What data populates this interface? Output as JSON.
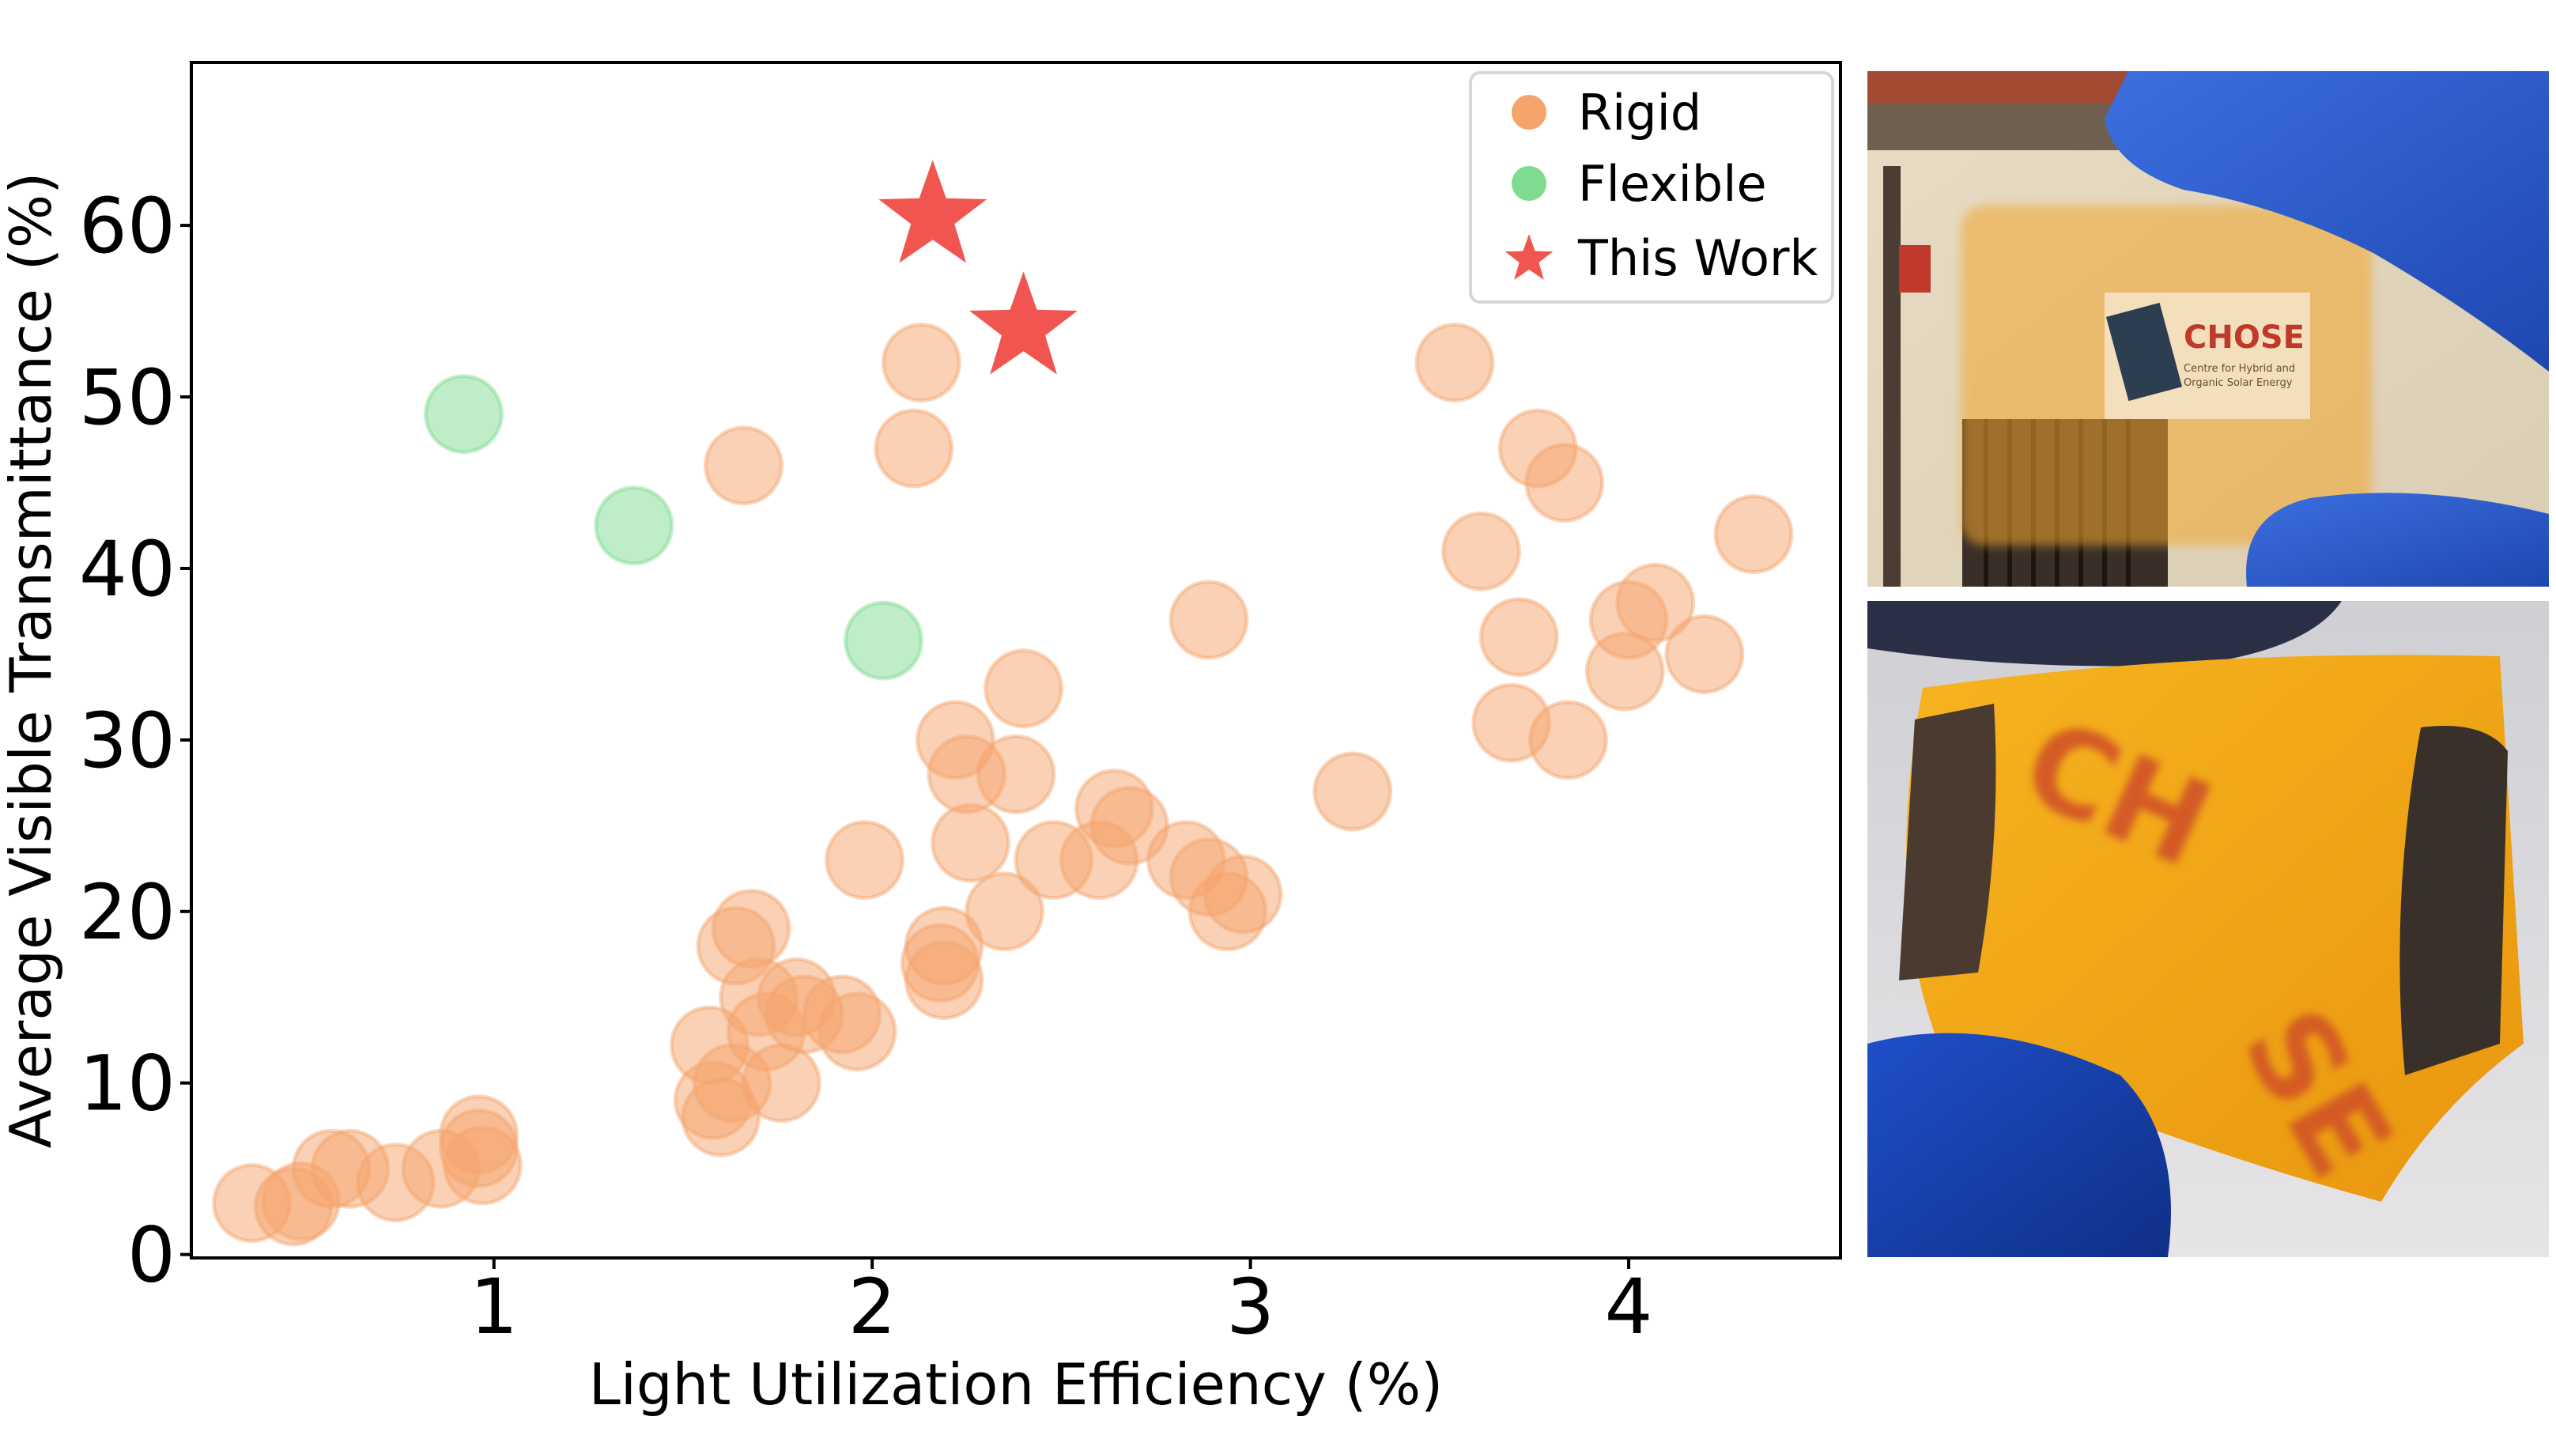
{
  "chart_data": {
    "type": "scatter",
    "xlabel": "Light Utilization Efficiency (%)",
    "ylabel": "Average Visible Transmittance (%)",
    "xlim": [
      0.2,
      4.56
    ],
    "ylim": [
      -0.2,
      69.5
    ],
    "x_ticks": [
      "1",
      "2",
      "3",
      "4"
    ],
    "y_ticks": [
      "0",
      "10",
      "20",
      "30",
      "40",
      "50",
      "60"
    ],
    "grid": false,
    "legend_position": "top-right",
    "series": [
      {
        "name": "Rigid",
        "color": "#f5a46c",
        "marker": "circle",
        "points": [
          [
            0.36,
            3.0
          ],
          [
            0.47,
            2.8
          ],
          [
            0.49,
            3.1
          ],
          [
            0.57,
            5.0
          ],
          [
            0.62,
            5.0
          ],
          [
            0.74,
            4.2
          ],
          [
            0.86,
            5.0
          ],
          [
            0.96,
            7.0
          ],
          [
            0.97,
            5.2
          ],
          [
            0.96,
            6.2
          ],
          [
            1.57,
            12.2
          ],
          [
            1.58,
            9.0
          ],
          [
            1.6,
            8.0
          ],
          [
            1.63,
            10.0
          ],
          [
            1.64,
            18.0
          ],
          [
            1.68,
            19.0
          ],
          [
            1.7,
            15.0
          ],
          [
            1.72,
            13.0
          ],
          [
            1.76,
            10.0
          ],
          [
            1.8,
            15.0
          ],
          [
            1.82,
            14.0
          ],
          [
            1.92,
            14.0
          ],
          [
            1.96,
            13.0
          ],
          [
            1.66,
            46.0
          ],
          [
            1.98,
            23.0
          ],
          [
            2.11,
            47.0
          ],
          [
            2.13,
            52.0
          ],
          [
            2.18,
            17.0
          ],
          [
            2.19,
            18.0
          ],
          [
            2.19,
            16.0
          ],
          [
            2.22,
            30.0
          ],
          [
            2.25,
            28.0
          ],
          [
            2.26,
            24.0
          ],
          [
            2.35,
            20.0
          ],
          [
            2.38,
            28.0
          ],
          [
            2.4,
            33.0
          ],
          [
            2.48,
            23.0
          ],
          [
            2.6,
            23.0
          ],
          [
            2.64,
            26.0
          ],
          [
            2.68,
            25.0
          ],
          [
            2.83,
            23.0
          ],
          [
            2.89,
            22.0
          ],
          [
            2.89,
            37.0
          ],
          [
            2.94,
            20.0
          ],
          [
            2.98,
            21.0
          ],
          [
            3.27,
            27.0
          ],
          [
            3.54,
            52.0
          ],
          [
            3.61,
            41.0
          ],
          [
            3.69,
            31.0
          ],
          [
            3.71,
            36.0
          ],
          [
            3.76,
            47.0
          ],
          [
            3.83,
            45.0
          ],
          [
            3.84,
            30.0
          ],
          [
            3.99,
            34.0
          ],
          [
            4.0,
            37.0
          ],
          [
            4.07,
            38.0
          ],
          [
            4.2,
            35.0
          ],
          [
            4.33,
            42.0
          ]
        ]
      },
      {
        "name": "Flexible",
        "color": "#7ddc8f",
        "marker": "circle",
        "points": [
          [
            0.92,
            49.0
          ],
          [
            1.37,
            42.5
          ],
          [
            2.03,
            35.8
          ]
        ]
      },
      {
        "name": "This Work",
        "color": "#f0564f",
        "marker": "star",
        "points": [
          [
            2.16,
            60.5
          ],
          [
            2.4,
            54.0
          ]
        ]
      }
    ]
  },
  "photos": {
    "top": {
      "sign_title": "CHOSE",
      "sign_subtitle_1": "Centre for Hybrid and",
      "sign_subtitle_2": "Organic Solar Energy"
    },
    "bottom": {
      "print_text_1": "CH",
      "print_text_2": "SE"
    }
  }
}
